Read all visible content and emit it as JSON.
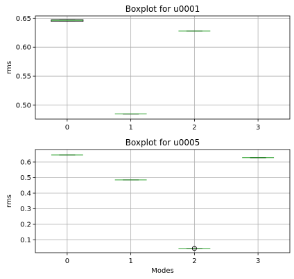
{
  "chart_data": [
    {
      "type": "boxplot",
      "title": "Boxplot for u0001",
      "xlabel": "",
      "ylabel": "rms",
      "categories": [
        "0",
        "1",
        "2",
        "3"
      ],
      "ylim": [
        0.476,
        0.654
      ],
      "yticks": [
        0.5,
        0.55,
        0.6,
        0.65
      ],
      "ytick_labels": [
        "0.50",
        "0.55",
        "0.60",
        "0.65"
      ],
      "grid": true,
      "boxes": [
        {
          "category": "0",
          "q1": 0.6445,
          "median": 0.6465,
          "q3": 0.6472,
          "whisker_low": 0.6445,
          "whisker_high": 0.6472,
          "outliers": []
        },
        {
          "category": "1",
          "q1": 0.4848,
          "median": 0.4848,
          "q3": 0.4848,
          "whisker_low": 0.4848,
          "whisker_high": 0.4848,
          "outliers": []
        },
        {
          "category": "2",
          "q1": 0.6278,
          "median": 0.6278,
          "q3": 0.6278,
          "whisker_low": 0.6278,
          "whisker_high": 0.6278,
          "outliers": []
        },
        {
          "category": "3",
          "q1": null,
          "median": null,
          "q3": null,
          "whisker_low": null,
          "whisker_high": null,
          "outliers": []
        }
      ]
    },
    {
      "type": "boxplot",
      "title": "Boxplot for u0005",
      "xlabel": "Modes",
      "ylabel": "rms",
      "categories": [
        "0",
        "1",
        "2",
        "3"
      ],
      "ylim": [
        0.018,
        0.68
      ],
      "yticks": [
        0.1,
        0.2,
        0.3,
        0.4,
        0.5,
        0.6
      ],
      "ytick_labels": [
        "0.1",
        "0.2",
        "0.3",
        "0.4",
        "0.5",
        "0.6"
      ],
      "grid": true,
      "boxes": [
        {
          "category": "0",
          "q1": 0.6452,
          "median": 0.6452,
          "q3": 0.6452,
          "whisker_low": 0.6452,
          "whisker_high": 0.6452,
          "outliers": []
        },
        {
          "category": "1",
          "q1": 0.4848,
          "median": 0.4848,
          "q3": 0.4848,
          "whisker_low": 0.4848,
          "whisker_high": 0.4848,
          "outliers": []
        },
        {
          "category": "2",
          "q1": 0.0452,
          "median": 0.0452,
          "q3": 0.0452,
          "whisker_low": 0.0452,
          "whisker_high": 0.0452,
          "outliers": [
            0.0452
          ]
        },
        {
          "category": "3",
          "q1": 0.6278,
          "median": 0.6278,
          "q3": 0.6278,
          "whisker_low": 0.6278,
          "whisker_high": 0.6278,
          "outliers": []
        }
      ]
    }
  ],
  "colors": {
    "median": "#2ca02c",
    "box": "#000000",
    "grid": "#b0b0b0",
    "frame": "#000000"
  }
}
